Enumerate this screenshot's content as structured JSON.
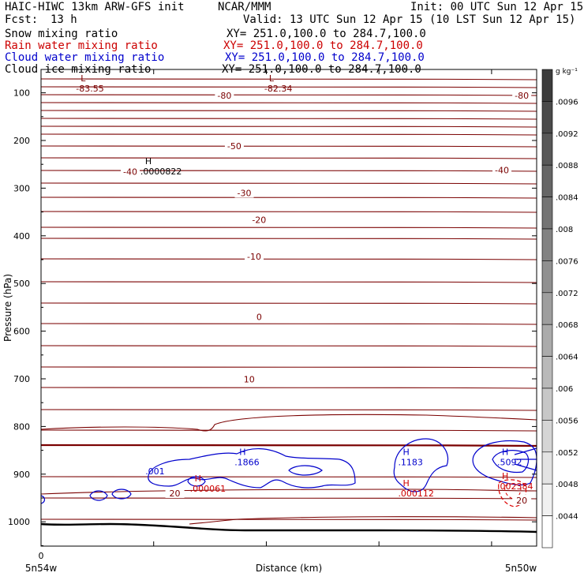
{
  "header": {
    "title": "HAIC-HIWC 13km ARW-GFS init",
    "org": "NCAR/MMM",
    "init": "Init: 00 UTC Sun 12 Apr 15",
    "fcst_label": "Fcst:",
    "fcst_value": "13 h",
    "valid": "Valid: 13 UTC Sun 12 Apr 15 (10 LST Sun 12 Apr 15)"
  },
  "fields": [
    {
      "name": "Snow mixing ratio",
      "xy": "XY= 251.0,100.0 to 284.7,100.0",
      "color": "#000000"
    },
    {
      "name": "Rain water mixing ratio",
      "xy": "XY= 251.0,100.0 to 284.7,100.0",
      "color": "#cc0000"
    },
    {
      "name": "Cloud water mixing ratio",
      "xy": "XY= 251.0,100.0 to 284.7,100.0",
      "color": "#0000cc"
    },
    {
      "name": "Cloud ice mixing ratio",
      "xy": "XY= 251.0,100.0 to 284.7,100.0",
      "color": "#000000"
    }
  ],
  "colors": {
    "temperature": "#7a0000",
    "cloud_water": "#0000cc",
    "rain": "#dd0000",
    "text": "#000000"
  },
  "chart_data": {
    "type": "contour",
    "ylabel": "Pressure (hPa)",
    "xlabel": "Distance (km)",
    "y_ticks": [
      100,
      200,
      300,
      400,
      500,
      600,
      700,
      800,
      900,
      1000
    ],
    "ylim": [
      1050,
      50
    ],
    "x_zero_label": "0",
    "x_left_label": "5n54w",
    "x_right_label": "5n50w",
    "colorbar": {
      "unit": "g kg⁻¹",
      "labels": [
        ".0096",
        ".0092",
        ".0088",
        ".0084",
        ".008",
        ".0076",
        ".0072",
        ".0068",
        ".0064",
        ".006",
        ".0056",
        ".0052",
        ".0048",
        ".0044"
      ]
    },
    "temperature_labels": [
      {
        "text": "-80",
        "p": 106,
        "frac": 0.37
      },
      {
        "text": "-80",
        "p": 106,
        "frac": 0.97
      },
      {
        "text": "-50",
        "p": 212,
        "frac": 0.39
      },
      {
        "text": "-40",
        "p": 265,
        "frac": 0.18
      },
      {
        "text": "-40",
        "p": 262,
        "frac": 0.93
      },
      {
        "text": "-30",
        "p": 310,
        "frac": 0.41
      },
      {
        "text": "-20",
        "p": 366,
        "frac": 0.44
      },
      {
        "text": "-10",
        "p": 443,
        "frac": 0.43
      },
      {
        "text": "0",
        "p": 570,
        "frac": 0.44
      },
      {
        "text": "10",
        "p": 701,
        "frac": 0.42
      },
      {
        "text": "20",
        "p": 940,
        "frac": 0.27
      },
      {
        "text": "20",
        "p": 955,
        "frac": 0.97
      }
    ],
    "extrema": [
      {
        "kind": "L",
        "value": "-83.55",
        "p": 86,
        "frac": 0.08,
        "color": "#7a0000"
      },
      {
        "kind": "L",
        "value": "-82.34",
        "p": 86,
        "frac": 0.46,
        "color": "#7a0000"
      },
      {
        "kind": "H",
        "value": ".0000822",
        "p": 260,
        "frac": 0.21,
        "color": "#000000"
      },
      {
        "kind": "H",
        "value": ".1866",
        "p": 870,
        "frac": 0.4,
        "color": "#0000cc"
      },
      {
        "kind": "H",
        "value": ".1183",
        "p": 870,
        "frac": 0.73,
        "color": "#0000cc"
      },
      {
        "kind": "H",
        "value": ".5092",
        "p": 870,
        "frac": 0.93,
        "color": "#0000cc"
      },
      {
        "kind": "H",
        "value": ".000061",
        "p": 925,
        "frac": 0.31,
        "color": "#cc0000"
      },
      {
        "kind": "H",
        "value": ".000112",
        "p": 935,
        "frac": 0.73,
        "color": "#cc0000"
      },
      {
        "kind": "H",
        "value": ".002384",
        "p": 920,
        "frac": 0.93,
        "color": "#cc0000"
      }
    ],
    "cloud_water_labels": [
      {
        "text": ".001",
        "p": 894,
        "frac": 0.23
      }
    ]
  }
}
